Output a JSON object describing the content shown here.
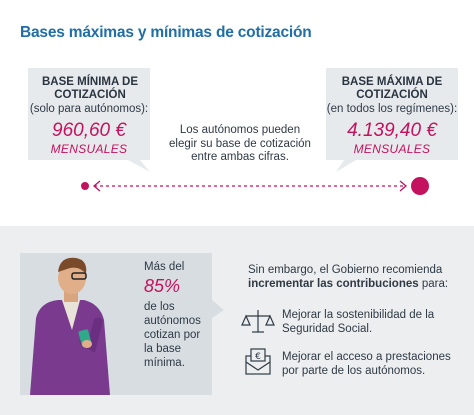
{
  "header": {
    "title": "Bases máximas y mínimas de cotización"
  },
  "minimum": {
    "label": "BASE MÍNIMA DE COTIZACIÓN",
    "note": "(solo para autónomos):",
    "amount": "960,60 €",
    "period": "MENSUALES"
  },
  "maximum": {
    "label": "BASE MÁXIMA DE COTIZACIÓN",
    "note": "(en todos los regímenes):",
    "amount": "4.139,40 €",
    "period": "MENSUALES"
  },
  "choice": "Los autónomos pueden elegir su base de cotización entre ambas cifras.",
  "stat": {
    "intro": "Más del",
    "figure": "85%",
    "text": "de los autónomos cotizan por la base mínima."
  },
  "recommendation": {
    "intro": "Sin embargo, el Gobierno recomienda",
    "emphasis": "incrementar las contribuciones",
    "tail": "para:",
    "items": [
      "Mejorar la sostenibilidad de la Seguridad Social.",
      "Mejorar el acceso a prestaciones por parte de los autónomos."
    ]
  }
}
